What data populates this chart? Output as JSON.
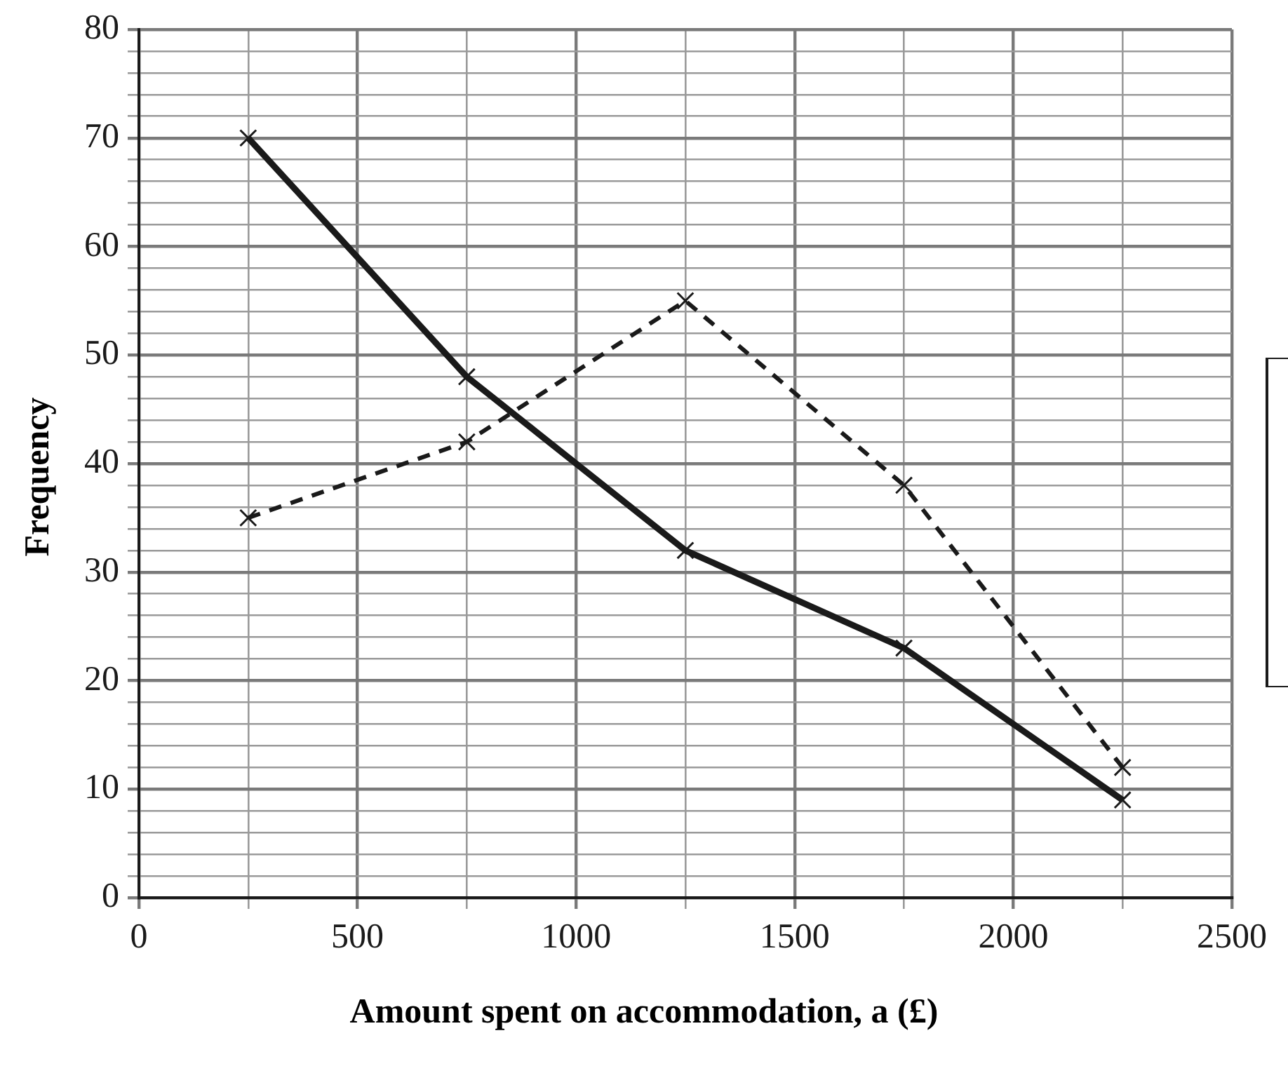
{
  "chart_data": {
    "type": "line",
    "xlabel": "Amount spent on accommodation, a (£)",
    "ylabel": "Frequency",
    "x": [
      250,
      750,
      1250,
      1750,
      2250
    ],
    "series": [
      {
        "color": "#1a1a1a",
        "values": [
          70,
          48,
          32,
          23,
          9
        ],
        "line_style": "solid"
      },
      {
        "color": "#1a1a1a",
        "values": [
          35,
          42,
          55,
          38,
          12
        ],
        "line_style": "dashed"
      }
    ],
    "xlim": [
      0,
      2500
    ],
    "xticks": [
      0,
      {
        "value": 250,
        "label": null
      },
      500,
      {
        "value": 750,
        "label": null
      },
      1000,
      {
        "value": 1250,
        "label": null
      },
      1500,
      {
        "value": 1750,
        "label": null
      },
      2000,
      {
        "value": 2250,
        "label": null
      },
      2500
    ],
    "ylim": [
      0,
      80
    ],
    "yticks": [
      0,
      {
        "value": 2,
        "label": null
      },
      {
        "value": 4,
        "label": null
      },
      {
        "value": 6,
        "label": null
      },
      {
        "value": 8,
        "label": null
      },
      10,
      {
        "value": 12,
        "label": null
      },
      {
        "value": 14,
        "label": null
      },
      {
        "value": 16,
        "label": null
      },
      {
        "value": 18,
        "label": null
      },
      20,
      {
        "value": 22,
        "label": null
      },
      {
        "value": 24,
        "label": null
      },
      {
        "value": 26,
        "label": null
      },
      {
        "value": 28,
        "label": null
      },
      30,
      {
        "value": 32,
        "label": null
      },
      {
        "value": 34,
        "label": null
      },
      {
        "value": 36,
        "label": null
      },
      {
        "value": 38,
        "label": null
      },
      40,
      {
        "value": 42,
        "label": null
      },
      {
        "value": 44,
        "label": null
      },
      {
        "value": 46,
        "label": null
      },
      {
        "value": 48,
        "label": null
      },
      50,
      {
        "value": 52,
        "label": null
      },
      {
        "value": 54,
        "label": null
      },
      {
        "value": 56,
        "label": null
      },
      {
        "value": 58,
        "label": null
      },
      60,
      {
        "value": 62,
        "label": null
      },
      {
        "value": 64,
        "label": null
      },
      {
        "value": 66,
        "label": null
      },
      {
        "value": 68,
        "label": null
      },
      70,
      {
        "value": 72,
        "label": null
      },
      {
        "value": 74,
        "label": null
      },
      {
        "value": 76,
        "label": null
      },
      {
        "value": 78,
        "label": null
      },
      80
    ],
    "grid": true,
    "marker": "cross",
    "legend": false
  }
}
